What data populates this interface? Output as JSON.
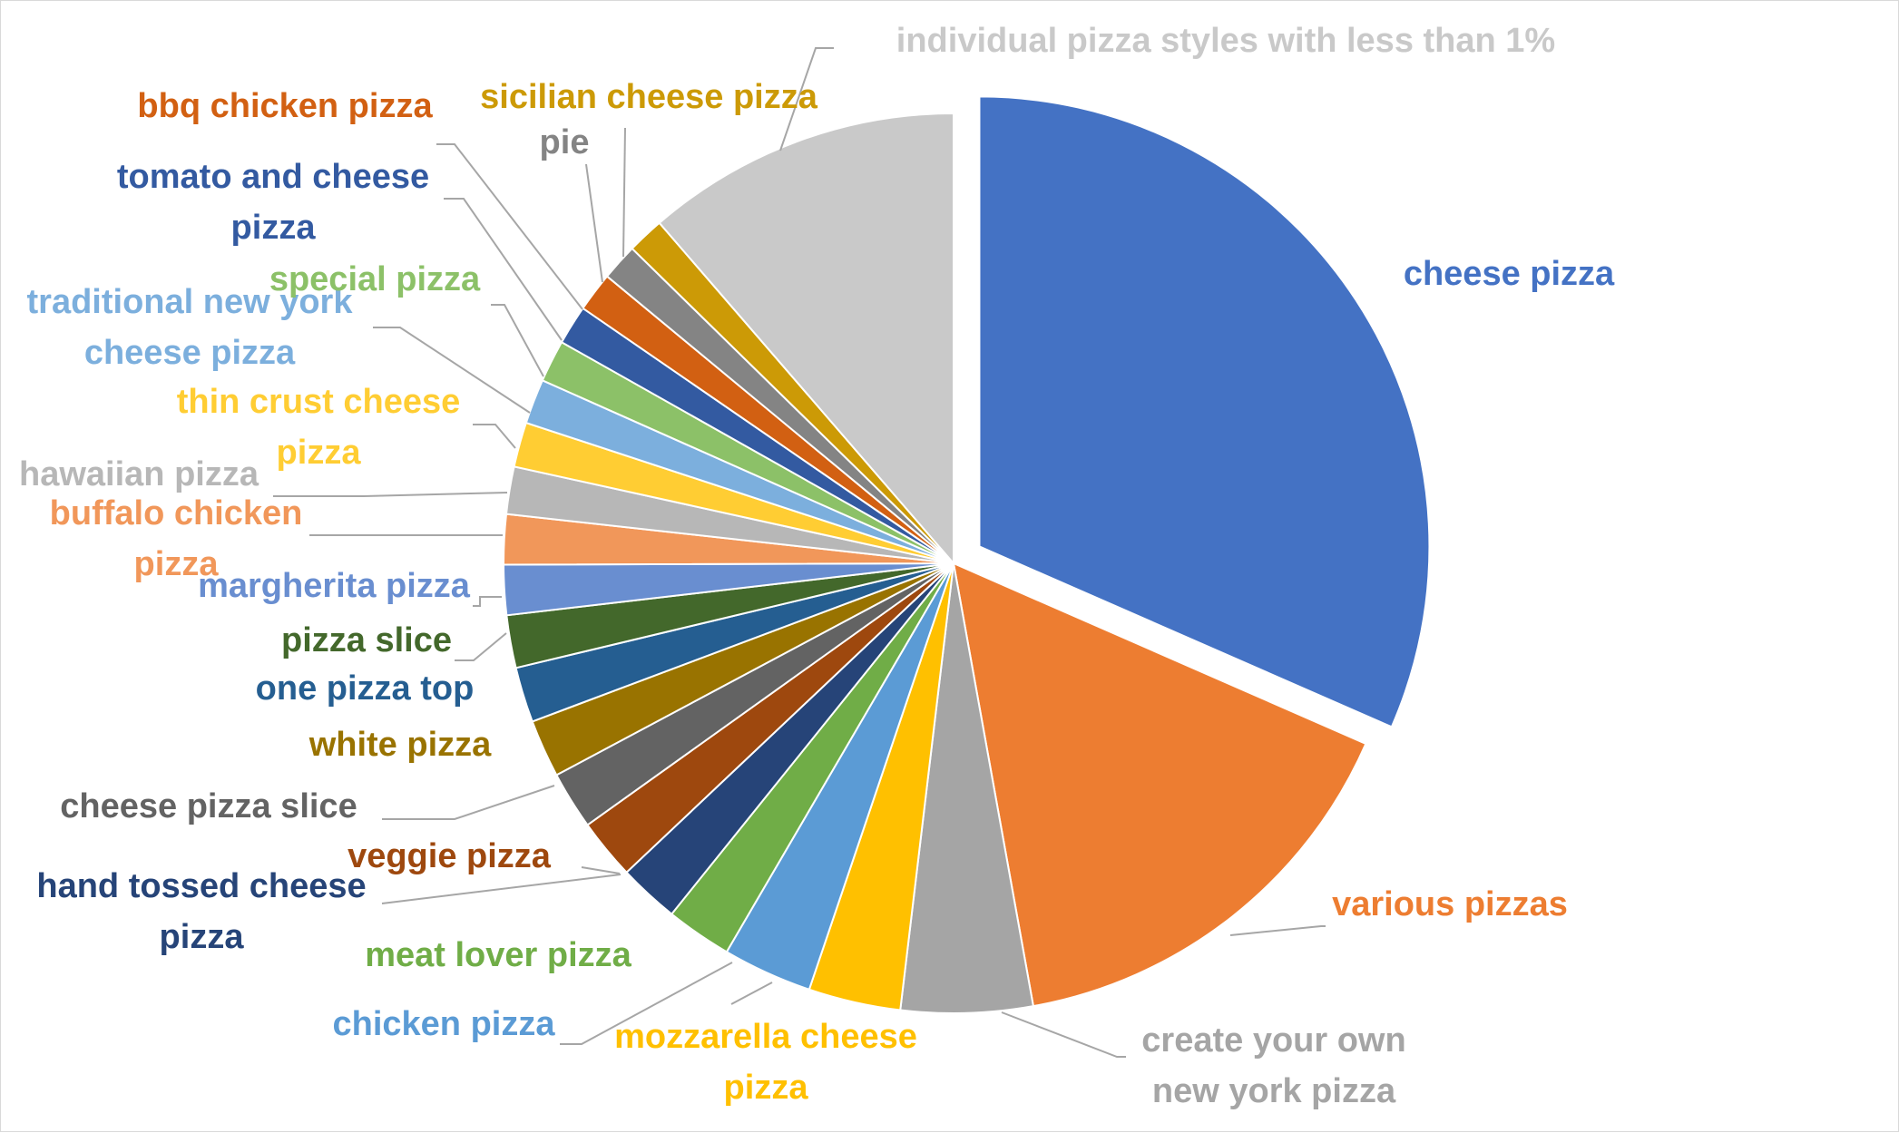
{
  "chart_data": {
    "type": "pie",
    "title": "",
    "exploded_slice": "cheese pizza",
    "unit": "%",
    "slices": [
      {
        "label": "cheese pizza",
        "lines": [
          "cheese pizza"
        ],
        "value": 33.4,
        "color": "#4472C4"
      },
      {
        "label": "various pizzas",
        "lines": [
          "various pizzas"
        ],
        "value": 16.5,
        "color": "#ED7D31"
      },
      {
        "label": "create your own new york pizza",
        "lines": [
          "create your own",
          "new york pizza"
        ],
        "value": 5.0,
        "color": "#A5A5A5"
      },
      {
        "label": "mozzarella cheese pizza",
        "lines": [
          "mozzarella cheese",
          "pizza"
        ],
        "value": 3.5,
        "color": "#FFC000"
      },
      {
        "label": "chicken pizza",
        "lines": [
          "chicken pizza"
        ],
        "value": 3.4,
        "color": "#5B9BD5"
      },
      {
        "label": "meat lover pizza",
        "lines": [
          "meat lover pizza"
        ],
        "value": 2.5,
        "color": "#70AD47"
      },
      {
        "label": "hand tossed cheese pizza",
        "lines": [
          "hand tossed cheese",
          "pizza"
        ],
        "value": 2.3,
        "color": "#264478"
      },
      {
        "label": "veggie pizza",
        "lines": [
          "veggie pizza"
        ],
        "value": 2.3,
        "color": "#9E480E"
      },
      {
        "label": "cheese pizza slice",
        "lines": [
          "cheese pizza slice"
        ],
        "value": 2.2,
        "color": "#636363"
      },
      {
        "label": "white pizza",
        "lines": [
          "white pizza"
        ],
        "value": 2.2,
        "color": "#997300"
      },
      {
        "label": "one pizza top",
        "lines": [
          "one pizza top"
        ],
        "value": 2.1,
        "color": "#255E91"
      },
      {
        "label": "pizza slice",
        "lines": [
          "pizza slice"
        ],
        "value": 2.0,
        "color": "#43682B"
      },
      {
        "label": "margherita pizza",
        "lines": [
          "margherita pizza"
        ],
        "value": 1.9,
        "color": "#698ED0"
      },
      {
        "label": "buffalo chicken pizza",
        "lines": [
          "buffalo chicken",
          "pizza"
        ],
        "value": 1.9,
        "color": "#F1975A"
      },
      {
        "label": "hawaiian pizza",
        "lines": [
          "hawaiian pizza"
        ],
        "value": 1.8,
        "color": "#B7B7B7"
      },
      {
        "label": "thin crust cheese pizza",
        "lines": [
          "thin crust cheese",
          "pizza"
        ],
        "value": 1.7,
        "color": "#FFCD33"
      },
      {
        "label": "traditional new york cheese pizza",
        "lines": [
          "traditional new york",
          "cheese pizza"
        ],
        "value": 1.7,
        "color": "#7CAFDD"
      },
      {
        "label": "special pizza",
        "lines": [
          "special pizza"
        ],
        "value": 1.6,
        "color": "#8CC168"
      },
      {
        "label": "tomato and cheese pizza",
        "lines": [
          "tomato and cheese",
          "pizza"
        ],
        "value": 1.5,
        "color": "#335AA1"
      },
      {
        "label": "bbq chicken pizza",
        "lines": [
          "bbq chicken pizza"
        ],
        "value": 1.5,
        "color": "#D26012"
      },
      {
        "label": "pie",
        "lines": [
          "pie"
        ],
        "value": 1.4,
        "color": "#848484"
      },
      {
        "label": "sicilian cheese pizza",
        "lines": [
          "sicilian cheese pizza"
        ],
        "value": 1.4,
        "color": "#CC9A06"
      },
      {
        "label": "individual pizza styles with less than 1%",
        "lines": [
          "individual pizza styles with less than 1%"
        ],
        "value": 12.0,
        "color": "#C9C9C9"
      }
    ]
  },
  "colors": {
    "leader_line": "#A6A6A6",
    "slice_border": "#ffffff",
    "frame_border": "#d9d9d9"
  }
}
